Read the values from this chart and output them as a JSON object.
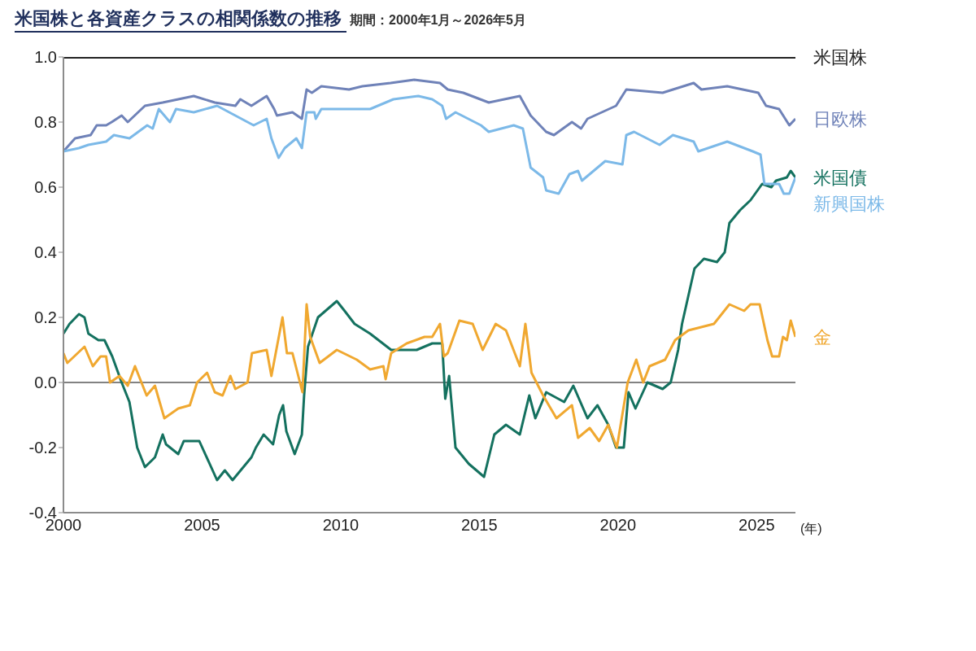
{
  "chart_data": {
    "type": "line",
    "title": "米国株と各資産クラスの相関係数の推移",
    "subtitle": "期間：2000年1月～2026年5月",
    "xlabel": "(年)",
    "xlim": [
      2000,
      2026.4
    ],
    "xticks": [
      2000,
      2005,
      2010,
      2015,
      2020,
      2025
    ],
    "ylim": [
      -0.4,
      1.0
    ],
    "yticks": [
      {
        "value": -0.4,
        "label": "-0.4"
      },
      {
        "value": -0.2,
        "label": "-0.2"
      },
      {
        "value": 0,
        "label": "0.0"
      },
      {
        "value": 0.2,
        "label": "0.2"
      },
      {
        "value": 0.4,
        "label": "0.4"
      },
      {
        "value": 0.6,
        "label": "0.6"
      },
      {
        "value": 0.8,
        "label": "0.8"
      },
      {
        "value": 1.0,
        "label": "1.0"
      }
    ],
    "grid": false,
    "legend": false,
    "marker": "none",
    "line_style": "solid",
    "ref_lines": [
      {
        "axis": "y",
        "value": 0,
        "color": "#595959"
      }
    ],
    "series": [
      {
        "name": "米国株",
        "color": "#222222",
        "x": [
          2000,
          2026.4
        ],
        "values": [
          1.0,
          1.0
        ]
      },
      {
        "name": "日欧株",
        "color": "#6f82b8",
        "x": [
          2000,
          2000.42,
          2000.98,
          2001.2,
          2001.54,
          2001.74,
          2002.1,
          2002.32,
          2002.94,
          2003.58,
          2004.7,
          2005.46,
          2006.2,
          2006.38,
          2006.78,
          2007.33,
          2007.6,
          2007.7,
          2008.26,
          2008.6,
          2008.77,
          2008.96,
          2009.3,
          2010.3,
          2010.78,
          2011.8,
          2012.65,
          2013.58,
          2013.86,
          2014.42,
          2015.34,
          2016.46,
          2016.85,
          2017.41,
          2017.69,
          2018.34,
          2018.67,
          2018.9,
          2019.93,
          2020.3,
          2021.61,
          2022.73,
          2023.01,
          2023.94,
          2025.06,
          2025.34,
          2025.81,
          2026.18,
          2026.4
        ],
        "values": [
          0.71,
          0.75,
          0.76,
          0.79,
          0.79,
          0.8,
          0.82,
          0.8,
          0.85,
          0.86,
          0.88,
          0.86,
          0.85,
          0.87,
          0.85,
          0.88,
          0.84,
          0.82,
          0.83,
          0.81,
          0.9,
          0.89,
          0.91,
          0.9,
          0.91,
          0.92,
          0.93,
          0.92,
          0.9,
          0.89,
          0.86,
          0.88,
          0.82,
          0.77,
          0.76,
          0.8,
          0.78,
          0.81,
          0.85,
          0.9,
          0.89,
          0.92,
          0.9,
          0.91,
          0.89,
          0.85,
          0.84,
          0.79,
          0.81
        ]
      },
      {
        "name": "米国債",
        "color": "#14715f",
        "x": [
          2000,
          2000.22,
          2000.56,
          2000.76,
          2000.9,
          2001.26,
          2001.48,
          2001.76,
          2002.1,
          2002.38,
          2002.66,
          2002.94,
          2003.3,
          2003.58,
          2003.7,
          2004.14,
          2004.34,
          2004.9,
          2005.54,
          2005.82,
          2006.1,
          2006.78,
          2006.94,
          2007.22,
          2007.56,
          2007.78,
          2007.92,
          2008.04,
          2008.34,
          2008.6,
          2008.68,
          2008.82,
          2009.18,
          2009.86,
          2010.14,
          2010.5,
          2011.06,
          2011.82,
          2012.74,
          2013.3,
          2013.66,
          2013.77,
          2013.91,
          2014.14,
          2014.62,
          2015.17,
          2015.54,
          2015.96,
          2016.46,
          2016.8,
          2017.02,
          2017.41,
          2018.06,
          2018.39,
          2018.9,
          2019.26,
          2019.65,
          2019.93,
          2020.21,
          2020.38,
          2020.63,
          2021.06,
          2021.61,
          2021.9,
          2022.17,
          2022.31,
          2022.76,
          2023.1,
          2023.57,
          2023.85,
          2024.02,
          2024.41,
          2024.78,
          2025.2,
          2025.53,
          2025.7,
          2026.09,
          2026.23,
          2026.4
        ],
        "values": [
          0.15,
          0.18,
          0.21,
          0.2,
          0.15,
          0.13,
          0.13,
          0.08,
          0.0,
          -0.06,
          -0.2,
          -0.26,
          -0.23,
          -0.16,
          -0.19,
          -0.22,
          -0.18,
          -0.18,
          -0.3,
          -0.27,
          -0.3,
          -0.23,
          -0.2,
          -0.16,
          -0.19,
          -0.1,
          -0.07,
          -0.15,
          -0.22,
          -0.16,
          -0.04,
          0.11,
          0.2,
          0.25,
          0.22,
          0.18,
          0.15,
          0.1,
          0.1,
          0.12,
          0.12,
          -0.05,
          0.02,
          -0.2,
          -0.25,
          -0.29,
          -0.16,
          -0.13,
          -0.16,
          -0.04,
          -0.11,
          -0.03,
          -0.06,
          -0.01,
          -0.11,
          -0.07,
          -0.13,
          -0.2,
          -0.2,
          -0.03,
          -0.08,
          0.0,
          -0.02,
          0.0,
          0.1,
          0.18,
          0.35,
          0.38,
          0.37,
          0.4,
          0.49,
          0.53,
          0.56,
          0.61,
          0.6,
          0.62,
          0.63,
          0.65,
          0.63
        ]
      },
      {
        "name": "新興国株",
        "color": "#7cb9e8",
        "x": [
          2000,
          2000.56,
          2000.9,
          2001.54,
          2001.82,
          2002.38,
          2003.02,
          2003.22,
          2003.44,
          2003.84,
          2004.06,
          2004.7,
          2005.54,
          2006.2,
          2006.86,
          2007.33,
          2007.5,
          2007.76,
          2007.98,
          2008.4,
          2008.6,
          2008.77,
          2009.05,
          2009.1,
          2009.3,
          2011.06,
          2011.9,
          2012.8,
          2013.3,
          2013.66,
          2013.8,
          2014.14,
          2015.06,
          2015.34,
          2016.24,
          2016.57,
          2016.85,
          2017.3,
          2017.41,
          2017.86,
          2018.25,
          2018.56,
          2018.7,
          2019.54,
          2020.16,
          2020.3,
          2020.58,
          2021.5,
          2021.98,
          2022.73,
          2022.9,
          2023.94,
          2024.86,
          2025.14,
          2025.28,
          2025.81,
          2025.98,
          2026.18,
          2026.4
        ],
        "values": [
          0.71,
          0.72,
          0.73,
          0.74,
          0.76,
          0.75,
          0.79,
          0.78,
          0.84,
          0.8,
          0.84,
          0.83,
          0.85,
          0.82,
          0.79,
          0.81,
          0.75,
          0.69,
          0.72,
          0.75,
          0.72,
          0.83,
          0.83,
          0.81,
          0.84,
          0.84,
          0.87,
          0.88,
          0.87,
          0.85,
          0.81,
          0.83,
          0.79,
          0.77,
          0.79,
          0.78,
          0.66,
          0.63,
          0.59,
          0.58,
          0.64,
          0.65,
          0.62,
          0.68,
          0.67,
          0.76,
          0.77,
          0.73,
          0.76,
          0.74,
          0.71,
          0.74,
          0.71,
          0.7,
          0.61,
          0.61,
          0.58,
          0.58,
          0.63
        ]
      },
      {
        "name": "金",
        "color": "#f0a830",
        "x": [
          2000,
          2000.14,
          2000.76,
          2001.06,
          2001.34,
          2001.54,
          2001.68,
          2002.02,
          2002.32,
          2002.58,
          2003.0,
          2003.3,
          2003.64,
          2004.14,
          2004.56,
          2004.82,
          2005.18,
          2005.46,
          2005.74,
          2006.02,
          2006.2,
          2006.64,
          2006.8,
          2007.33,
          2007.5,
          2007.9,
          2008.06,
          2008.26,
          2008.62,
          2008.77,
          2008.9,
          2009.24,
          2009.86,
          2010.58,
          2011.06,
          2011.54,
          2011.62,
          2011.82,
          2012.38,
          2013.02,
          2013.3,
          2013.58,
          2013.72,
          2013.86,
          2014.28,
          2014.76,
          2015.12,
          2015.59,
          2015.96,
          2016.46,
          2016.66,
          2016.88,
          2017.3,
          2017.78,
          2018.34,
          2018.56,
          2018.98,
          2019.32,
          2019.65,
          2019.96,
          2020.35,
          2020.66,
          2020.91,
          2021.14,
          2021.7,
          2022.06,
          2022.54,
          2023.46,
          2024.02,
          2024.55,
          2024.78,
          2025.11,
          2025.39,
          2025.56,
          2025.81,
          2025.95,
          2026.09,
          2026.23,
          2026.4
        ],
        "values": [
          0.09,
          0.06,
          0.11,
          0.05,
          0.08,
          0.08,
          0.0,
          0.02,
          -0.01,
          0.05,
          -0.04,
          -0.01,
          -0.11,
          -0.08,
          -0.07,
          0.0,
          0.03,
          -0.03,
          -0.04,
          0.02,
          -0.02,
          0.0,
          0.09,
          0.1,
          0.02,
          0.2,
          0.09,
          0.09,
          -0.03,
          0.24,
          0.14,
          0.06,
          0.1,
          0.07,
          0.04,
          0.05,
          0.01,
          0.09,
          0.12,
          0.14,
          0.14,
          0.18,
          0.08,
          0.09,
          0.19,
          0.18,
          0.1,
          0.18,
          0.16,
          0.05,
          0.18,
          0.03,
          -0.04,
          -0.11,
          -0.07,
          -0.17,
          -0.14,
          -0.18,
          -0.13,
          -0.2,
          0.0,
          0.07,
          0.0,
          0.05,
          0.07,
          0.13,
          0.16,
          0.18,
          0.24,
          0.22,
          0.24,
          0.24,
          0.13,
          0.08,
          0.08,
          0.14,
          0.13,
          0.19,
          0.14
        ]
      }
    ]
  }
}
